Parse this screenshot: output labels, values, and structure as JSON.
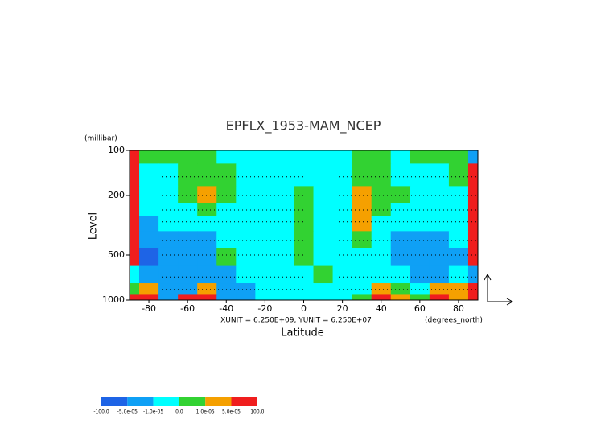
{
  "chart_data": {
    "type": "contour",
    "title": "EPFLX_1953-MAM_NCEP",
    "y_unit_label": "(millibar)",
    "y_label": "Level",
    "x_label": "Latitude",
    "x_unit_label": "(degrees_north)",
    "vector_scale_note": "XUNIT = 6.250E+09, YUNIT = 6.250E+07",
    "x": [
      -90,
      -80,
      -70,
      -60,
      -50,
      -40,
      -30,
      -20,
      -10,
      0,
      10,
      20,
      30,
      40,
      50,
      60,
      70,
      80,
      90
    ],
    "y": [
      100,
      150,
      200,
      250,
      300,
      400,
      500,
      700,
      850,
      1000
    ],
    "z": [
      [
        6e-05,
        5e-06,
        5e-06,
        5e-06,
        5e-06,
        -5e-06,
        -5e-06,
        -5e-06,
        -5e-06,
        -5e-06,
        -5e-06,
        -5e-06,
        5e-06,
        5e-06,
        -5e-06,
        5e-06,
        5e-06,
        5e-06,
        -2e-05
      ],
      [
        6e-05,
        -5e-06,
        -5e-06,
        5e-06,
        5e-06,
        5e-06,
        -5e-06,
        -5e-06,
        -5e-06,
        -5e-06,
        -5e-06,
        -5e-06,
        5e-06,
        5e-06,
        -5e-06,
        -5e-06,
        -5e-06,
        5e-06,
        6e-05
      ],
      [
        6e-05,
        -5e-06,
        -5e-06,
        5e-06,
        2e-05,
        5e-06,
        -5e-06,
        -5e-06,
        -5e-06,
        5e-06,
        -5e-06,
        -5e-06,
        2e-05,
        5e-06,
        5e-06,
        -5e-06,
        -5e-06,
        -5e-06,
        6e-05
      ],
      [
        6e-05,
        -5e-06,
        -5e-06,
        -5e-06,
        5e-06,
        -5e-06,
        -5e-06,
        -5e-06,
        -5e-06,
        5e-06,
        -5e-06,
        -5e-06,
        2e-05,
        5e-06,
        -5e-06,
        -5e-06,
        -5e-06,
        -5e-06,
        6e-05
      ],
      [
        6e-05,
        -2e-05,
        -5e-06,
        -5e-06,
        -5e-06,
        -5e-06,
        -5e-06,
        -5e-06,
        -5e-06,
        5e-06,
        -5e-06,
        -5e-06,
        2e-05,
        -5e-06,
        -5e-06,
        -5e-06,
        -5e-06,
        -5e-06,
        6e-05
      ],
      [
        6e-05,
        -2e-05,
        -2e-05,
        -2e-05,
        -2e-05,
        -5e-06,
        -5e-06,
        -5e-06,
        -5e-06,
        5e-06,
        -5e-06,
        -5e-06,
        5e-06,
        -5e-06,
        -2e-05,
        -2e-05,
        -2e-05,
        -5e-06,
        6e-05
      ],
      [
        6e-05,
        -6e-05,
        -2e-05,
        -2e-05,
        -2e-05,
        5e-06,
        -5e-06,
        -5e-06,
        -5e-06,
        5e-06,
        -5e-06,
        -5e-06,
        -5e-06,
        -5e-06,
        -2e-05,
        -2e-05,
        -2e-05,
        -2e-05,
        6e-05
      ],
      [
        -5e-06,
        -2e-05,
        -2e-05,
        -2e-05,
        -2e-05,
        -2e-05,
        -5e-06,
        -5e-06,
        -5e-06,
        -5e-06,
        5e-06,
        -5e-06,
        -5e-06,
        -5e-06,
        -5e-06,
        -2e-05,
        -2e-05,
        -5e-06,
        -2e-05
      ],
      [
        5e-06,
        2e-05,
        -2e-05,
        -2e-05,
        2e-05,
        -2e-05,
        -2e-05,
        -5e-06,
        -5e-06,
        -5e-06,
        -5e-06,
        -5e-06,
        -5e-06,
        2e-05,
        5e-06,
        -5e-06,
        2e-05,
        2e-05,
        6e-05
      ],
      [
        6e-05,
        6e-05,
        -2e-05,
        6e-05,
        6e-05,
        -2e-05,
        -2e-05,
        -5e-06,
        -5e-06,
        -5e-06,
        -5e-06,
        -5e-06,
        5e-06,
        6e-05,
        2e-05,
        5e-06,
        6e-05,
        2e-05,
        6e-05
      ]
    ],
    "levels": [
      {
        "value": -100,
        "label": "-100.0"
      },
      {
        "value": -5e-05,
        "label": "-5.0e-05"
      },
      {
        "value": -1e-05,
        "label": "-1.0e-05"
      },
      {
        "value": 0,
        "label": "0.0"
      },
      {
        "value": 1e-05,
        "label": "1.0e-05"
      },
      {
        "value": 5e-05,
        "label": "5.0e-05"
      },
      {
        "value": 100,
        "label": "100.0"
      }
    ],
    "colors": [
      "#1e64e6",
      "#0fa0f5",
      "#00ffff",
      "#32d232",
      "#f5a000",
      "#f01e1e"
    ],
    "xlim": [
      -90,
      90
    ],
    "xticks": [
      -80,
      -60,
      -40,
      -20,
      0,
      20,
      40,
      60,
      80
    ],
    "ylim": [
      1000,
      100
    ],
    "yticks": [
      100,
      200,
      500,
      1000
    ],
    "log_y": true,
    "grid": true
  }
}
